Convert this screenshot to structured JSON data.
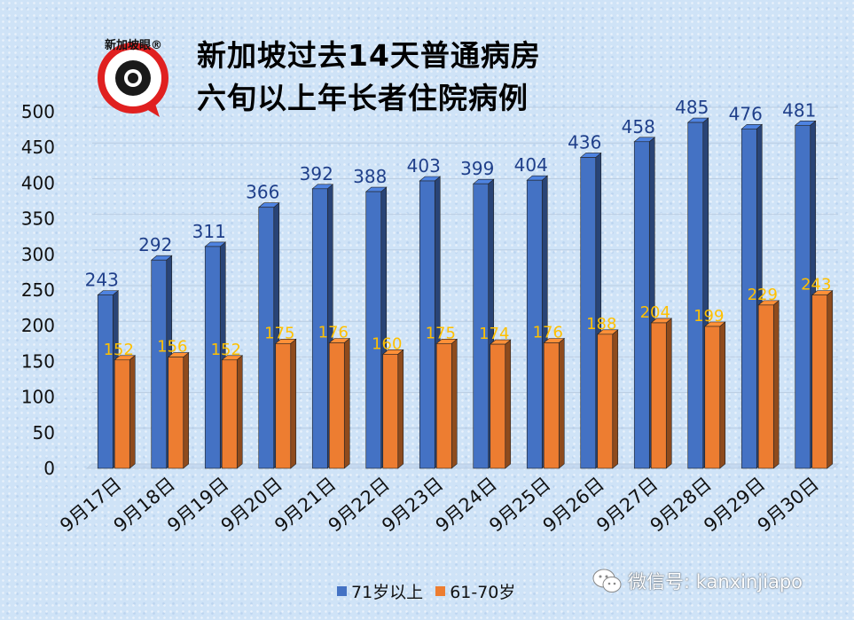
{
  "chart_data": {
    "type": "bar",
    "title_lines": [
      "新加坡过去14天普通病房",
      "六旬以上年长者住院病例"
    ],
    "categories": [
      "9月17日",
      "9月18日",
      "9月19日",
      "9月20日",
      "9月21日",
      "9月22日",
      "9月23日",
      "9月24日",
      "9月25日",
      "9月26日",
      "9月27日",
      "9月28日",
      "9月29日",
      "9月30日"
    ],
    "series": [
      {
        "name": "71岁以上",
        "color": "#4472c4",
        "label_color": "#1f3f8a",
        "values": [
          243,
          292,
          311,
          366,
          392,
          388,
          403,
          399,
          404,
          436,
          458,
          485,
          476,
          481
        ]
      },
      {
        "name": "61-70岁",
        "color": "#ed7d31",
        "label_color": "#ffc000",
        "values": [
          152,
          156,
          152,
          175,
          176,
          160,
          175,
          174,
          176,
          188,
          204,
          199,
          229,
          243
        ]
      }
    ],
    "ylim": [
      0,
      500
    ],
    "yticks": [
      0,
      50,
      100,
      150,
      200,
      250,
      300,
      350,
      400,
      450,
      500
    ],
    "grid": true,
    "legend_position": "bottom"
  },
  "logo": {
    "text": "新加坡眼®"
  },
  "watermark": {
    "text": "微信号: kanxinjiapo"
  }
}
